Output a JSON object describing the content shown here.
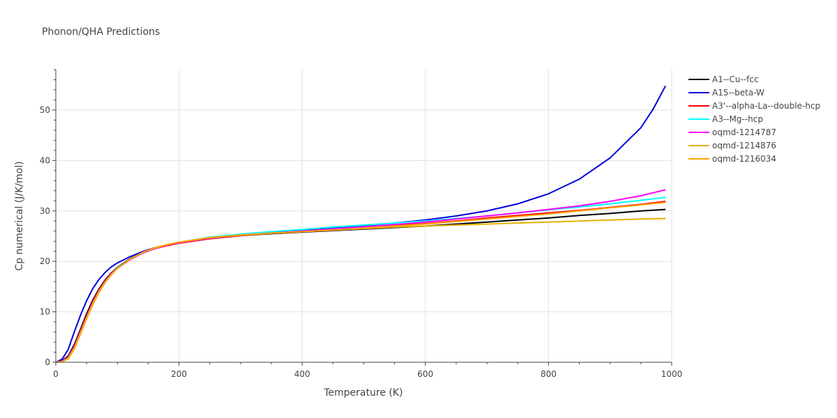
{
  "chart_data": {
    "type": "line",
    "title": "Phonon/QHA Predictions",
    "xlabel": "Temperature (K)",
    "ylabel": "Cp numerical (J/K/mol)",
    "xlim": [
      0,
      1000
    ],
    "ylim": [
      0,
      58
    ],
    "xticks": [
      0,
      200,
      400,
      600,
      800,
      1000
    ],
    "yticks": [
      0,
      10,
      20,
      30,
      40,
      50
    ],
    "grid": true,
    "legend_position": "top-right",
    "series": [
      {
        "name": "A1--Cu--fcc",
        "color": "#000000",
        "x": [
          0,
          10,
          20,
          30,
          40,
          50,
          60,
          70,
          80,
          90,
          100,
          120,
          140,
          160,
          180,
          200,
          250,
          300,
          350,
          400,
          450,
          500,
          550,
          600,
          650,
          700,
          750,
          800,
          850,
          900,
          950,
          990
        ],
        "y": [
          0,
          0.3,
          1.2,
          3.5,
          6.5,
          9.6,
          12.3,
          14.5,
          16.3,
          17.7,
          18.8,
          20.5,
          21.7,
          22.6,
          23.2,
          23.7,
          24.5,
          25.1,
          25.5,
          25.8,
          26.1,
          26.4,
          26.7,
          27.0,
          27.4,
          27.8,
          28.2,
          28.6,
          29.1,
          29.5,
          30.0,
          30.3
        ]
      },
      {
        "name": "A15--beta-W",
        "color": "#0000dd",
        "x": [
          0,
          10,
          20,
          30,
          40,
          50,
          60,
          70,
          80,
          90,
          100,
          120,
          140,
          160,
          180,
          200,
          250,
          300,
          350,
          400,
          450,
          500,
          550,
          600,
          650,
          700,
          750,
          800,
          850,
          900,
          950,
          970,
          990
        ],
        "y": [
          0,
          0.6,
          2.5,
          6.0,
          9.3,
          12.2,
          14.6,
          16.4,
          17.8,
          18.9,
          19.7,
          20.9,
          21.9,
          22.7,
          23.2,
          23.7,
          24.6,
          25.2,
          25.7,
          26.2,
          26.7,
          27.1,
          27.6,
          28.2,
          29.0,
          30.0,
          31.4,
          33.4,
          36.3,
          40.5,
          46.5,
          50.2,
          54.8
        ]
      },
      {
        "name": "A3'--alpha-La--double-hcp",
        "color": "#ff0000",
        "x": [
          0,
          10,
          20,
          30,
          40,
          50,
          60,
          70,
          80,
          90,
          100,
          120,
          140,
          160,
          180,
          200,
          250,
          300,
          350,
          400,
          450,
          500,
          550,
          600,
          650,
          700,
          750,
          800,
          850,
          900,
          950,
          990
        ],
        "y": [
          0,
          0.2,
          1.0,
          3.2,
          6.2,
          9.2,
          12.0,
          14.3,
          16.1,
          17.6,
          18.7,
          20.4,
          21.6,
          22.5,
          23.1,
          23.6,
          24.5,
          25.1,
          25.6,
          25.9,
          26.3,
          26.7,
          27.1,
          27.5,
          28.0,
          28.6,
          29.1,
          29.6,
          30.1,
          30.7,
          31.3,
          31.9
        ]
      },
      {
        "name": "A3--Mg--hcp",
        "color": "#00ffff",
        "x": [
          0,
          10,
          20,
          30,
          40,
          50,
          60,
          70,
          80,
          90,
          100,
          120,
          140,
          160,
          180,
          200,
          250,
          300,
          350,
          400,
          450,
          500,
          550,
          600,
          650,
          700,
          750,
          800,
          850,
          900,
          950,
          990
        ],
        "y": [
          0,
          0.2,
          0.9,
          3.0,
          6.0,
          9.0,
          11.8,
          14.1,
          16.0,
          17.5,
          18.7,
          20.4,
          21.7,
          22.6,
          23.3,
          23.8,
          24.8,
          25.4,
          25.9,
          26.3,
          26.8,
          27.2,
          27.6,
          28.0,
          28.5,
          29.0,
          29.6,
          30.2,
          30.8,
          31.4,
          32.1,
          32.7
        ]
      },
      {
        "name": "oqmd-1214787",
        "color": "#ff00ff",
        "x": [
          0,
          10,
          20,
          30,
          40,
          50,
          60,
          70,
          80,
          90,
          100,
          120,
          140,
          160,
          180,
          200,
          250,
          300,
          350,
          400,
          450,
          500,
          550,
          600,
          650,
          700,
          750,
          800,
          850,
          900,
          950,
          990
        ],
        "y": [
          0,
          0.2,
          0.9,
          3.0,
          6.0,
          9.0,
          11.8,
          14.1,
          16.0,
          17.5,
          18.6,
          20.3,
          21.6,
          22.5,
          23.2,
          23.7,
          24.6,
          25.2,
          25.6,
          26.0,
          26.4,
          26.8,
          27.3,
          27.8,
          28.4,
          29.0,
          29.6,
          30.3,
          31.0,
          31.9,
          33.0,
          34.2
        ]
      },
      {
        "name": "oqmd-1214876",
        "color": "#e6b000",
        "x": [
          0,
          10,
          20,
          30,
          40,
          50,
          60,
          70,
          80,
          90,
          100,
          120,
          140,
          160,
          180,
          200,
          250,
          300,
          350,
          400,
          450,
          500,
          550,
          600,
          650,
          700,
          750,
          800,
          850,
          900,
          950,
          990
        ],
        "y": [
          0,
          0.1,
          0.7,
          2.6,
          5.6,
          8.6,
          11.4,
          13.8,
          15.8,
          17.3,
          18.6,
          20.4,
          21.7,
          22.7,
          23.3,
          23.8,
          24.7,
          25.2,
          25.6,
          25.9,
          26.2,
          26.5,
          26.8,
          27.0,
          27.2,
          27.4,
          27.6,
          27.8,
          28.0,
          28.2,
          28.4,
          28.5
        ]
      },
      {
        "name": "oqmd-1216034",
        "color": "#ffa500",
        "x": [
          0,
          10,
          20,
          30,
          40,
          50,
          60,
          70,
          80,
          90,
          100,
          120,
          140,
          160,
          180,
          200,
          250,
          300,
          350,
          400,
          450,
          500,
          550,
          600,
          650,
          700,
          750,
          800,
          850,
          900,
          950,
          990
        ],
        "y": [
          0,
          0.1,
          0.8,
          2.8,
          5.8,
          8.8,
          11.6,
          14.0,
          15.9,
          17.4,
          18.6,
          20.4,
          21.7,
          22.6,
          23.3,
          23.8,
          24.7,
          25.2,
          25.6,
          25.9,
          26.2,
          26.6,
          27.0,
          27.4,
          27.9,
          28.4,
          28.9,
          29.4,
          30.0,
          30.6,
          31.2,
          31.7
        ]
      }
    ]
  }
}
